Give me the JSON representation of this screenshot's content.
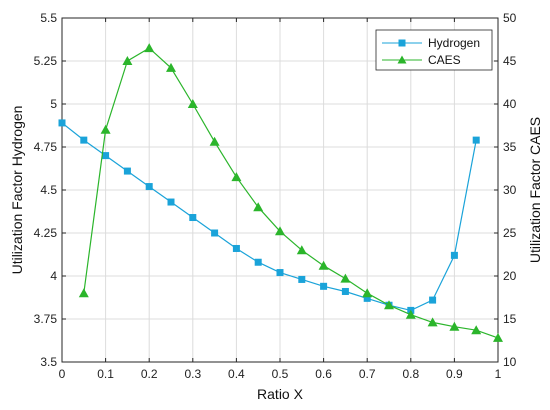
{
  "chart_data": {
    "type": "line",
    "title": "",
    "xlabel": "Ratio X",
    "ylabel": "Utilization Factor Hydrogen",
    "ylabel_right": "Utilization Factor CAES",
    "xlim": [
      0,
      1
    ],
    "ylim": [
      3.5,
      5.5
    ],
    "ylim_right": [
      10,
      50
    ],
    "grid": true,
    "legend_position": "top-right",
    "x_ticks": [
      "0",
      "0.1",
      "0.2",
      "0.3",
      "0.4",
      "0.5",
      "0.6",
      "0.7",
      "0.8",
      "0.9",
      "1"
    ],
    "y_ticks_left": [
      "3.5",
      "3.75",
      "4",
      "4.25",
      "4.5",
      "4.75",
      "5",
      "5.25",
      "5.5"
    ],
    "y_ticks_right": [
      "10",
      "15",
      "20",
      "25",
      "30",
      "35",
      "40",
      "45",
      "50"
    ],
    "series": [
      {
        "name": "Hydrogen",
        "axis": "left",
        "marker": "square",
        "color": "#1aa3d9",
        "x": [
          0,
          0.05,
          0.1,
          0.15,
          0.2,
          0.25,
          0.3,
          0.35,
          0.4,
          0.45,
          0.5,
          0.55,
          0.6,
          0.65,
          0.7,
          0.75,
          0.8,
          0.85,
          0.9,
          0.95
        ],
        "y": [
          4.89,
          4.79,
          4.7,
          4.61,
          4.52,
          4.43,
          4.34,
          4.25,
          4.16,
          4.08,
          4.02,
          3.98,
          3.94,
          3.91,
          3.87,
          3.83,
          3.8,
          3.86,
          4.12,
          4.79
        ]
      },
      {
        "name": "CAES",
        "axis": "right",
        "marker": "triangle",
        "color": "#2bb52b",
        "x": [
          0.05,
          0.1,
          0.15,
          0.2,
          0.25,
          0.3,
          0.35,
          0.4,
          0.45,
          0.5,
          0.55,
          0.6,
          0.65,
          0.7,
          0.75,
          0.8,
          0.85,
          0.9,
          0.95,
          1.0
        ],
        "y": [
          18,
          37,
          45,
          46.5,
          44.2,
          40,
          35.6,
          31.5,
          28,
          25.2,
          23,
          21.2,
          19.7,
          18,
          16.6,
          15.5,
          14.6,
          14.1,
          13.7,
          12.8
        ]
      }
    ]
  }
}
